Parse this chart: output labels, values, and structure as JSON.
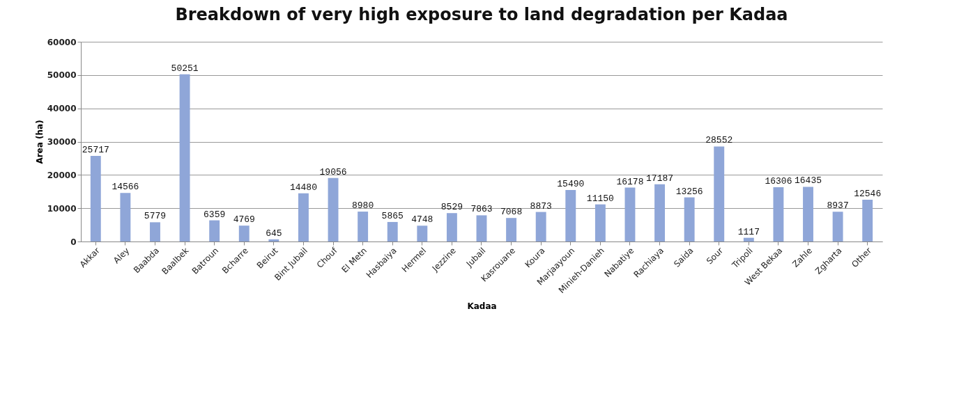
{
  "chart_data": {
    "type": "bar",
    "title": "Breakdown of very high exposure to land degradation per Kadaa",
    "xlabel": "Kadaa",
    "ylabel": "Area (ha)",
    "categories": [
      "Akkar",
      "Aley",
      "Baabda",
      "Baalbek",
      "Batroun",
      "Bcharre",
      "Beirut",
      "Bint Jubail",
      "Chouf",
      "El Metn",
      "Hasbaiya",
      "Hermel",
      "Jezzine",
      "Jubail",
      "Kasrouane",
      "Koura",
      "Marjaayoun",
      "Minieh-Danieh",
      "Nabatiye",
      "Rachiaya",
      "Saida",
      "Sour",
      "Tripoli",
      "West Bekaa",
      "Zahle",
      "Zgharta",
      "Other"
    ],
    "values": [
      25717,
      14566,
      5779,
      50251,
      6359,
      4769,
      645,
      14480,
      19056,
      8980,
      5865,
      4748,
      8529,
      7863,
      7068,
      8873,
      15490,
      11150,
      16178,
      17187,
      13256,
      28552,
      1117,
      16306,
      16435,
      8937,
      12546
    ],
    "color": "#8fa6d8",
    "ylim": [
      0,
      60000
    ],
    "yticks": [
      0,
      10000,
      20000,
      30000,
      40000,
      50000,
      60000
    ],
    "grid": "y",
    "data_labels": true
  }
}
